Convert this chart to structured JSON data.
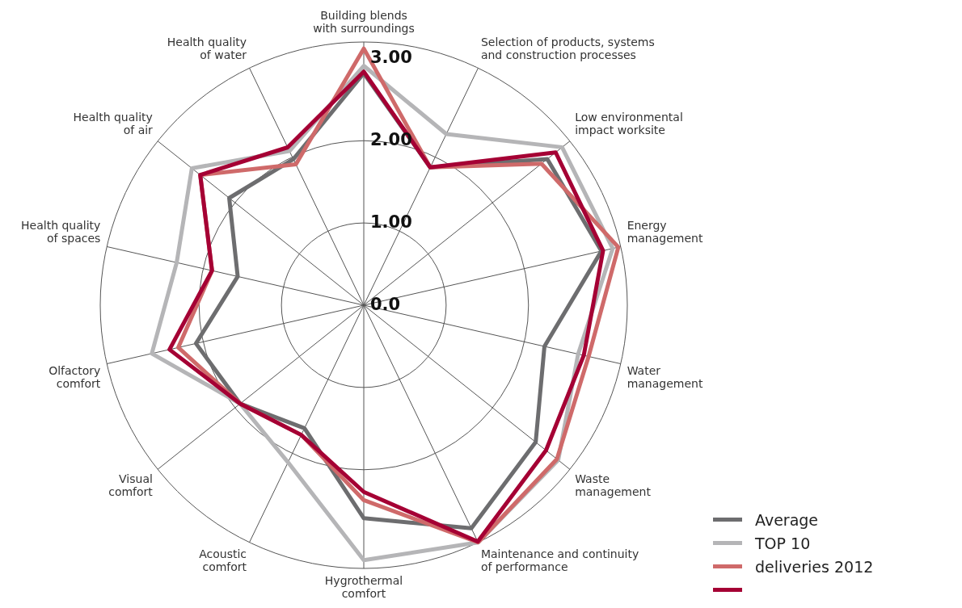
{
  "chart_data": {
    "type": "radar",
    "categories": [
      "Building blends\nwith surroundings",
      "Selection of products, systems\nand construction processes",
      "Low environmental\nimpact worksite",
      "Energy\nmanagement",
      "Water\nmanagement",
      "Waste\nmanagement",
      "Maintenance and continuity\nof performance",
      "Hygrothermal\ncomfort",
      "Acoustic\ncomfort",
      "Visual\ncomfort",
      "Olfactory\ncomfort",
      "Health quality\nof spaces",
      "Health quality\nof air",
      "Health quality\nof water"
    ],
    "series": [
      {
        "name": "Average",
        "color": "#6d6d6f",
        "values": [
          2.82,
          1.86,
          2.85,
          2.96,
          2.25,
          2.67,
          3.01,
          2.59,
          1.66,
          1.92,
          2.09,
          1.57,
          2.09,
          1.97
        ]
      },
      {
        "name": "TOP 10",
        "color": "#b5b5b7",
        "values": [
          2.91,
          2.31,
          3.08,
          3.1,
          2.67,
          3.02,
          3.2,
          3.1,
          2.12,
          1.92,
          2.64,
          2.33,
          2.67,
          2.08
        ]
      },
      {
        "name": "deliveries 2012",
        "color": "#cf6a6a",
        "values": [
          3.12,
          1.86,
          2.76,
          3.17,
          2.8,
          3.0,
          3.2,
          2.37,
          1.75,
          1.92,
          2.31,
          1.89,
          2.54,
          1.9
        ]
      },
      {
        "color": "#a50034",
        "values": [
          2.84,
          1.86,
          2.98,
          2.98,
          2.74,
          2.83,
          3.19,
          2.27,
          1.75,
          1.92,
          2.42,
          1.89,
          2.54,
          2.13
        ]
      }
    ],
    "ylim": [
      0,
      3.2
    ],
    "yticks": [
      {
        "value": 0,
        "label": "0.0"
      },
      {
        "value": 1,
        "label": "1.00"
      },
      {
        "value": 2,
        "label": "2.00"
      },
      {
        "value": 3,
        "label": "3.00"
      }
    ],
    "grid": true,
    "legend": "bottom right"
  }
}
